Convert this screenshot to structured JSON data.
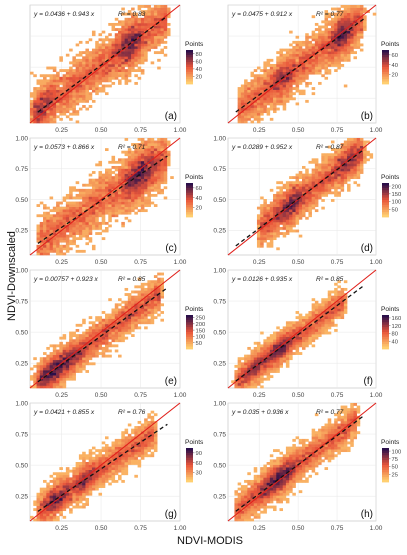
{
  "figure": {
    "xlabel": "NDVI-MODIS",
    "ylabel": "NDVI-Downscaled"
  },
  "chart_data": [
    {
      "panel_label": "(a)",
      "type": "heatmap",
      "equation": "y = 0.0436 + 0.943 x",
      "r2_label": "R² = 0.83",
      "intercept": 0.0436,
      "slope": 0.943,
      "r2": 0.83,
      "xlim": [
        0.05,
        1.0
      ],
      "ylim": [
        0.05,
        1.0
      ],
      "xticks": [
        "0.25",
        "0.50",
        "0.75",
        "1.00"
      ],
      "yticks": [],
      "legend_title": "Points",
      "legend_ticks": [
        "80",
        "60",
        "40",
        "20"
      ],
      "legend_values": [
        80,
        60,
        40,
        20
      ],
      "legend_max": 90,
      "colors": {
        "low": "#ffcf70",
        "mid": "#e8543a",
        "high": "#2b0f4a"
      }
    },
    {
      "panel_label": "(b)",
      "type": "heatmap",
      "equation": "y = 0.0475 + 0.912 x",
      "r2_label": "R² = 0.77",
      "intercept": 0.0475,
      "slope": 0.912,
      "r2": 0.77,
      "xlim": [
        0.05,
        1.0
      ],
      "ylim": [
        0.05,
        1.0
      ],
      "xticks": [
        "0.25",
        "0.50",
        "0.75",
        "1.00"
      ],
      "yticks": [],
      "legend_title": "Points",
      "legend_ticks": [
        "60",
        "40",
        "20"
      ],
      "legend_values": [
        60,
        40,
        20
      ],
      "legend_max": 70,
      "colors": {
        "low": "#ffcf70",
        "mid": "#e8543a",
        "high": "#2b0f4a"
      }
    },
    {
      "panel_label": "(c)",
      "type": "heatmap",
      "equation": "y = 0.0573 + 0.866 x",
      "r2_label": "R² = 0.71",
      "intercept": 0.0573,
      "slope": 0.866,
      "r2": 0.71,
      "xlim": [
        0.05,
        1.0
      ],
      "ylim": [
        0.05,
        1.0
      ],
      "xticks": [
        "0.25",
        "0.50",
        "0.75",
        "1.00"
      ],
      "yticks": [
        "1.00",
        "0.75",
        "0.50",
        "0.25"
      ],
      "legend_title": "Points",
      "legend_ticks": [
        "60",
        "40",
        "20"
      ],
      "legend_values": [
        60,
        40,
        20
      ],
      "legend_max": 70,
      "colors": {
        "low": "#ffcf70",
        "mid": "#e8543a",
        "high": "#2b0f4a"
      }
    },
    {
      "panel_label": "(d)",
      "type": "heatmap",
      "equation": "y = 0.0289 + 0.952 x",
      "r2_label": "R² = 0.87",
      "intercept": 0.0289,
      "slope": 0.952,
      "r2": 0.87,
      "xlim": [
        0.05,
        1.0
      ],
      "ylim": [
        0.05,
        1.0
      ],
      "xticks": [
        "0.25",
        "0.50",
        "0.75",
        "1.00"
      ],
      "yticks": [
        "1.00",
        "0.75",
        "0.50",
        "0.25"
      ],
      "legend_title": "Points",
      "legend_ticks": [
        "200",
        "150",
        "100",
        "50"
      ],
      "legend_values": [
        200,
        150,
        100,
        50
      ],
      "legend_max": 220,
      "colors": {
        "low": "#ffcf70",
        "mid": "#e8543a",
        "high": "#2b0f4a"
      }
    },
    {
      "panel_label": "(e)",
      "type": "heatmap",
      "equation": "y = 0.00757 + 0.923 x",
      "r2_label": "R² = 0.85",
      "intercept": 0.00757,
      "slope": 0.923,
      "r2": 0.85,
      "xlim": [
        0.05,
        1.0
      ],
      "ylim": [
        0.05,
        1.0
      ],
      "xticks": [
        "0.25",
        "0.50",
        "0.75",
        "1.00"
      ],
      "yticks": [
        "1.00",
        "0.75",
        "0.50",
        "0.25"
      ],
      "legend_title": "Points",
      "legend_ticks": [
        "250",
        "200",
        "150",
        "100",
        "50"
      ],
      "legend_values": [
        250,
        200,
        150,
        100,
        50
      ],
      "legend_max": 270,
      "colors": {
        "low": "#ffcf70",
        "mid": "#e8543a",
        "high": "#2b0f4a"
      }
    },
    {
      "panel_label": "(f)",
      "type": "heatmap",
      "equation": "y = 0.0126 + 0.935 x",
      "r2_label": "R² = 0.85",
      "intercept": 0.0126,
      "slope": 0.935,
      "r2": 0.85,
      "xlim": [
        0.05,
        1.0
      ],
      "ylim": [
        0.05,
        1.0
      ],
      "xticks": [
        "0.25",
        "0.50",
        "0.75",
        "1.00"
      ],
      "yticks": [
        "1.00",
        "0.75",
        "0.50",
        "0.25"
      ],
      "legend_title": "Points",
      "legend_ticks": [
        "160",
        "120",
        "80",
        "40"
      ],
      "legend_values": [
        160,
        120,
        80,
        40
      ],
      "legend_max": 175,
      "colors": {
        "low": "#ffcf70",
        "mid": "#e8543a",
        "high": "#2b0f4a"
      }
    },
    {
      "panel_label": "(g)",
      "type": "heatmap",
      "equation": "y = 0.0421 + 0.855 x",
      "r2_label": "R² = 0.76",
      "intercept": 0.0421,
      "slope": 0.855,
      "r2": 0.76,
      "xlim": [
        0.05,
        1.0
      ],
      "ylim": [
        0.05,
        1.0
      ],
      "xticks": [
        "0.25",
        "0.50",
        "0.75",
        "1.00"
      ],
      "yticks": [
        "1.00",
        "0.75",
        "0.50",
        "0.25"
      ],
      "legend_title": "Points",
      "legend_ticks": [
        "90",
        "60",
        "30"
      ],
      "legend_values": [
        90,
        60,
        30
      ],
      "legend_max": 105,
      "colors": {
        "low": "#ffcf70",
        "mid": "#e8543a",
        "high": "#2b0f4a"
      }
    },
    {
      "panel_label": "(h)",
      "type": "heatmap",
      "equation": "y = 0.035 + 0.936 x",
      "r2_label": "R² = 0.77",
      "intercept": 0.035,
      "slope": 0.936,
      "r2": 0.77,
      "xlim": [
        0.05,
        1.0
      ],
      "ylim": [
        0.05,
        1.0
      ],
      "xticks": [
        "0.25",
        "0.50",
        "0.75",
        "1.00"
      ],
      "yticks": [
        "1.00",
        "0.75",
        "0.50",
        "0.25"
      ],
      "legend_title": "Points",
      "legend_ticks": [
        "100",
        "75",
        "50",
        "25"
      ],
      "legend_values": [
        100,
        75,
        50,
        25
      ],
      "legend_max": 110,
      "colors": {
        "low": "#ffcf70",
        "mid": "#e8543a",
        "high": "#2b0f4a"
      }
    }
  ]
}
